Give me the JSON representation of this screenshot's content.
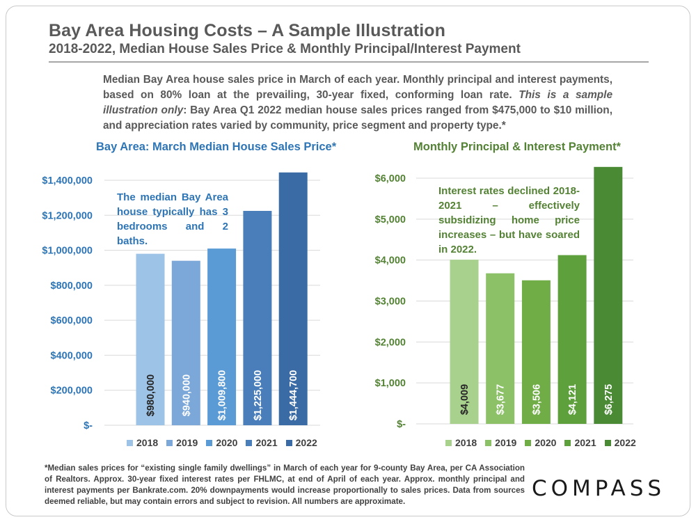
{
  "header": {
    "title": "Bay Area Housing Costs – A Sample Illustration",
    "subtitle": "2018-2022, Median House Sales Price & Monthly Principal/Interest Payment"
  },
  "intro": {
    "part1": "Median Bay Area house sales price in March of each year. Monthly principal and interest payments, based on 80% loan at the prevailing, 30-year fixed, conforming loan rate. ",
    "italic": "This is a sample illustration only",
    "part2": ": Bay Area Q1 2022 median house sales prices ranged from $475,000 to $10 million, and appreciation rates varied by community, price segment and property type.*"
  },
  "footnote": "*Median sales prices for “existing single family dwellings” in March of each year for 9-county Bay Area, per CA Association of Realtors. Approx. 30-year fixed interest rates per FHLMC, at end of April of each year. Approx. monthly principal and interest payments per Bankrate.com. 20% downpayments would increase proportionally to sales prices. Data from sources deemed reliable, but may contain errors and subject to revision. All numbers are approximate.",
  "logo": "COMPASS",
  "colors": {
    "blue_text": "#2e75b6",
    "green_text": "#548235",
    "blue_bars": [
      "#9dc3e6",
      "#7ba7d9",
      "#5b9bd5",
      "#4a7ebb",
      "#3b6ba5"
    ],
    "green_bars": [
      "#a9d18e",
      "#8cc168",
      "#70ad47",
      "#5ea03c",
      "#4a8a35"
    ]
  },
  "chart_data": [
    {
      "type": "bar",
      "title": "Bay Area: March Median House Sales Price*",
      "categories": [
        "2018",
        "2019",
        "2020",
        "2021",
        "2022"
      ],
      "values": [
        980000,
        940000,
        1009800,
        1225000,
        1444700
      ],
      "data_labels": [
        "$980,000",
        "$940,000",
        "$1,009,800",
        "$1,225,000",
        "$1,444,700"
      ],
      "ylim": [
        0,
        1400000
      ],
      "yticks": [
        0,
        200000,
        400000,
        600000,
        800000,
        1000000,
        1200000,
        1400000
      ],
      "ytick_labels": [
        "$-",
        "$200,000",
        "$400,000",
        "$600,000",
        "$800,000",
        "$1,000,000",
        "$1,200,000",
        "$1,400,000"
      ],
      "annotation": "The median Bay Area house typically has 3 bedrooms and 2 baths.",
      "legend": [
        "2018",
        "2019",
        "2020",
        "2021",
        "2022"
      ],
      "legend_position": "bottom",
      "grid": true
    },
    {
      "type": "bar",
      "title": "Monthly Principal & Interest Payment*",
      "categories": [
        "2018",
        "2019",
        "2020",
        "2021",
        "2022"
      ],
      "values": [
        4009,
        3677,
        3506,
        4121,
        6275
      ],
      "data_labels": [
        "$4,009",
        "$3,677",
        "$3,506",
        "$4,121",
        "$6,275"
      ],
      "ylim": [
        0,
        6000
      ],
      "yticks": [
        0,
        1000,
        2000,
        3000,
        4000,
        5000,
        6000
      ],
      "ytick_labels": [
        "$-",
        "$1,000",
        "$2,000",
        "$3,000",
        "$4,000",
        "$5,000",
        "$6,000"
      ],
      "annotation": "Interest rates declined 2018-2021 – effectively subsidizing home price increases – but have soared in 2022.",
      "legend": [
        "2018",
        "2019",
        "2020",
        "2021",
        "2022"
      ],
      "legend_position": "bottom",
      "grid": true
    }
  ]
}
